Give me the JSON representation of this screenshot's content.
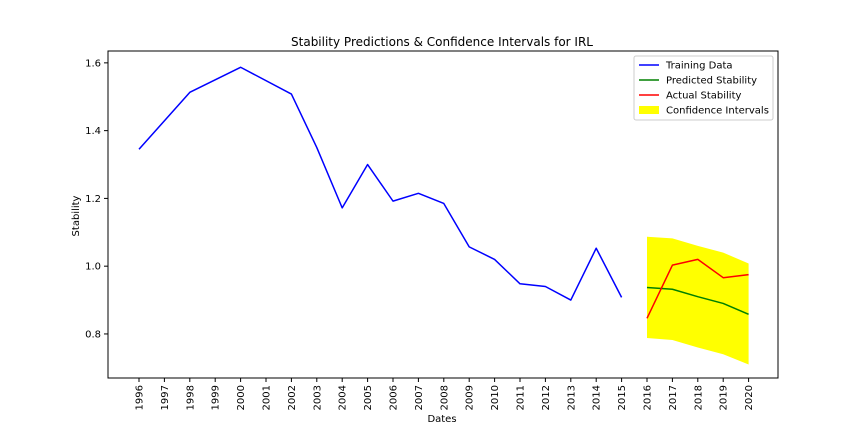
{
  "chart_data": {
    "type": "line",
    "title": "Stability Predictions & Confidence Intervals for IRL",
    "xlabel": "Dates",
    "ylabel": "Stability",
    "x_ticks": [
      "1996",
      "1997",
      "1998",
      "1999",
      "2000",
      "2001",
      "2002",
      "2003",
      "2004",
      "2005",
      "2006",
      "2007",
      "2008",
      "2009",
      "2010",
      "2011",
      "2012",
      "2013",
      "2014",
      "2015",
      "2016",
      "2017",
      "2018",
      "2019",
      "2020"
    ],
    "y_ticks": [
      "0.8",
      "1.0",
      "1.2",
      "1.4",
      "1.6"
    ],
    "ylim": [
      0.67,
      1.635
    ],
    "grid": false,
    "legend_position": "top-right",
    "series": [
      {
        "name": "Training Data",
        "color": "#0000ff",
        "x": [
          "1996",
          "1998",
          "2000",
          "2002",
          "2003",
          "2004",
          "2005",
          "2006",
          "2007",
          "2008",
          "2009",
          "2010",
          "2011",
          "2012",
          "2013",
          "2014",
          "2015"
        ],
        "values": [
          1.345,
          1.513,
          1.587,
          1.508,
          1.35,
          1.172,
          1.3,
          1.192,
          1.215,
          1.185,
          1.057,
          1.02,
          0.948,
          0.94,
          0.9,
          1.053,
          0.908
        ]
      },
      {
        "name": "Predicted Stability",
        "color": "#008000",
        "x": [
          "2016",
          "2017",
          "2018",
          "2019",
          "2020"
        ],
        "values": [
          0.937,
          0.932,
          0.91,
          0.89,
          0.858
        ]
      },
      {
        "name": "Actual Stability",
        "color": "#ff0000",
        "x": [
          "2016",
          "2017",
          "2018",
          "2019",
          "2020"
        ],
        "values": [
          0.846,
          1.003,
          1.02,
          0.966,
          0.975
        ]
      }
    ],
    "confidence_interval": {
      "name": "Confidence Intervals",
      "color": "#ffff00",
      "x": [
        "2016",
        "2017",
        "2018",
        "2019",
        "2020"
      ],
      "lower": [
        0.788,
        0.782,
        0.76,
        0.74,
        0.71
      ],
      "upper": [
        1.087,
        1.082,
        1.06,
        1.04,
        1.008
      ]
    }
  }
}
